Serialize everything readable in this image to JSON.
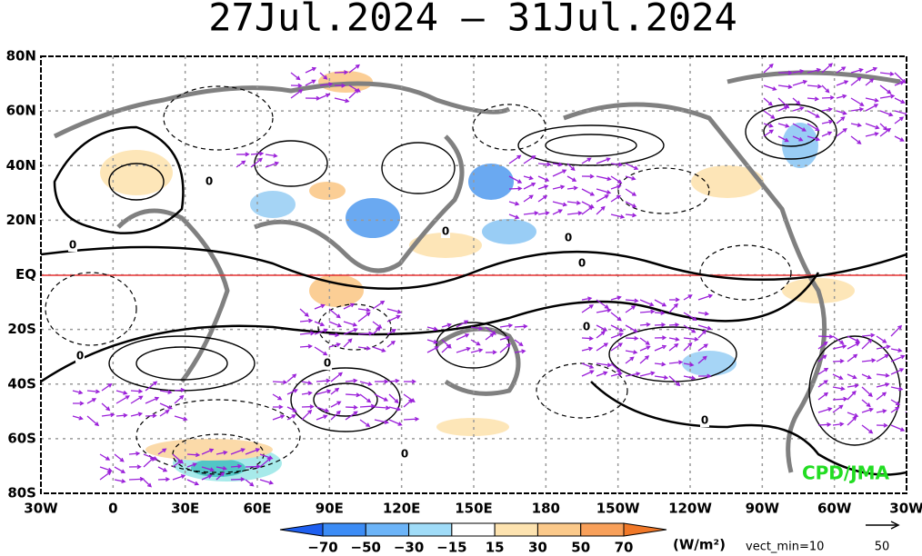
{
  "title": "27Jul.2024 – 31Jul.2024",
  "lat_labels": [
    "80N",
    "60N",
    "40N",
    "20N",
    "EQ",
    "20S",
    "40S",
    "60S",
    "80S"
  ],
  "lon_labels": [
    "30W",
    "0",
    "30E",
    "60E",
    "90E",
    "120E",
    "150E",
    "180",
    "150W",
    "120W",
    "90W",
    "60W",
    "30W"
  ],
  "contour_labels": [
    "0",
    "0",
    "0",
    "0",
    "0",
    "0",
    "0",
    "0",
    "0",
    "0"
  ],
  "credit": "CPD/JMA",
  "colorbar": {
    "labels": [
      "−70",
      "−50",
      "−30",
      "−15",
      "15",
      "30",
      "50",
      "70"
    ],
    "units": "(W/m²)"
  },
  "vector_legend": {
    "note": "vect_min=10",
    "reference": "50"
  }
}
